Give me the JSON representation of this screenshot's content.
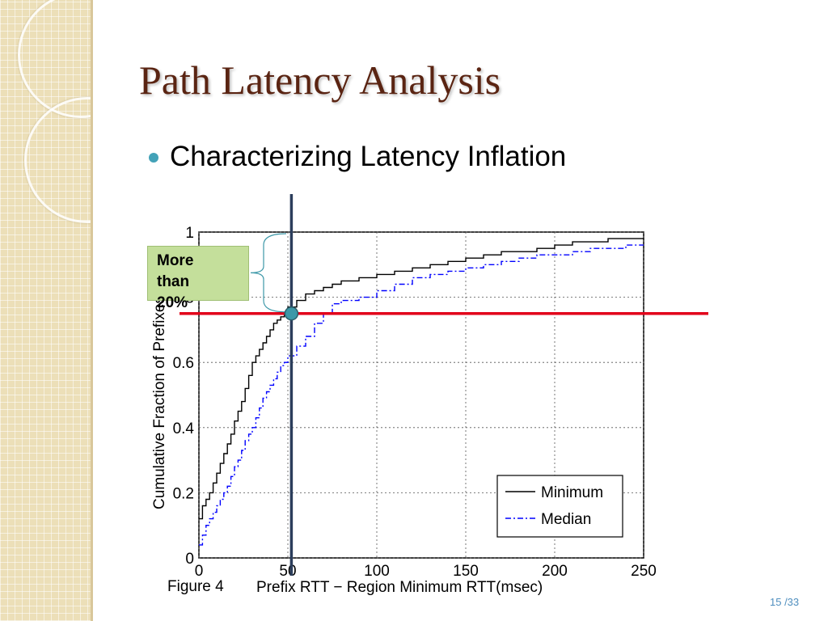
{
  "slide": {
    "title": "Path Latency Analysis",
    "bullet": "Characterizing Latency Inflation",
    "callout": "More than 20%",
    "figure_caption": "Figure 4",
    "page_number": "15 /33"
  },
  "colors": {
    "title": "#5a2412",
    "bullet": "#43a2b8",
    "highlight_line": "#e2001a",
    "marker_line": "#2c3e5c",
    "marker_dot": "#3d98a8",
    "callout_fill": "#c4df9b",
    "series_min": "#000000",
    "series_median": "#0000ff"
  },
  "chart_data": {
    "type": "line",
    "title": "",
    "xlabel": "Prefix RTT − Region Minimum RTT(msec)",
    "ylabel": "Cumulative Fraction of Prefixes",
    "xlim": [
      0,
      250
    ],
    "ylim": [
      0,
      1
    ],
    "xticks": [
      "0",
      "50",
      "100",
      "150",
      "200",
      "250"
    ],
    "yticks": [
      "0",
      "0.2",
      "0.4",
      "0.6",
      "0.8",
      "1"
    ],
    "grid": true,
    "legend_position": "bottom-right",
    "series": [
      {
        "name": "Minimum",
        "style": "solid",
        "x": [
          0,
          2,
          4,
          6,
          8,
          10,
          12,
          14,
          16,
          18,
          20,
          22,
          24,
          26,
          28,
          30,
          32,
          34,
          36,
          38,
          40,
          42,
          44,
          46,
          48,
          50,
          55,
          60,
          65,
          70,
          75,
          80,
          90,
          100,
          110,
          120,
          130,
          140,
          150,
          160,
          170,
          180,
          190,
          200,
          210,
          220,
          230,
          240,
          250
        ],
        "y": [
          0.12,
          0.16,
          0.18,
          0.2,
          0.23,
          0.26,
          0.29,
          0.32,
          0.35,
          0.38,
          0.42,
          0.45,
          0.48,
          0.52,
          0.56,
          0.6,
          0.62,
          0.64,
          0.66,
          0.68,
          0.7,
          0.72,
          0.73,
          0.74,
          0.75,
          0.77,
          0.79,
          0.81,
          0.82,
          0.83,
          0.84,
          0.85,
          0.86,
          0.87,
          0.88,
          0.89,
          0.9,
          0.91,
          0.92,
          0.93,
          0.94,
          0.94,
          0.95,
          0.96,
          0.97,
          0.97,
          0.98,
          0.98,
          0.98
        ]
      },
      {
        "name": "Median",
        "style": "dash-dot",
        "x": [
          0,
          2,
          4,
          6,
          8,
          10,
          12,
          14,
          16,
          18,
          20,
          22,
          24,
          26,
          28,
          30,
          32,
          34,
          36,
          38,
          40,
          42,
          44,
          46,
          48,
          50,
          55,
          60,
          65,
          70,
          75,
          80,
          90,
          100,
          110,
          120,
          130,
          140,
          150,
          160,
          170,
          180,
          190,
          200,
          210,
          220,
          230,
          240,
          250
        ],
        "y": [
          0.04,
          0.07,
          0.1,
          0.12,
          0.14,
          0.16,
          0.18,
          0.2,
          0.22,
          0.25,
          0.28,
          0.3,
          0.33,
          0.36,
          0.38,
          0.4,
          0.43,
          0.46,
          0.49,
          0.51,
          0.53,
          0.55,
          0.57,
          0.59,
          0.6,
          0.62,
          0.65,
          0.68,
          0.72,
          0.75,
          0.78,
          0.79,
          0.8,
          0.82,
          0.84,
          0.86,
          0.87,
          0.88,
          0.89,
          0.9,
          0.91,
          0.92,
          0.93,
          0.93,
          0.94,
          0.95,
          0.95,
          0.96,
          0.96
        ]
      }
    ],
    "annotations": {
      "vertical_line_x": 52,
      "horizontal_line_y": 0.75,
      "marker_point": [
        52,
        0.75
      ]
    }
  }
}
